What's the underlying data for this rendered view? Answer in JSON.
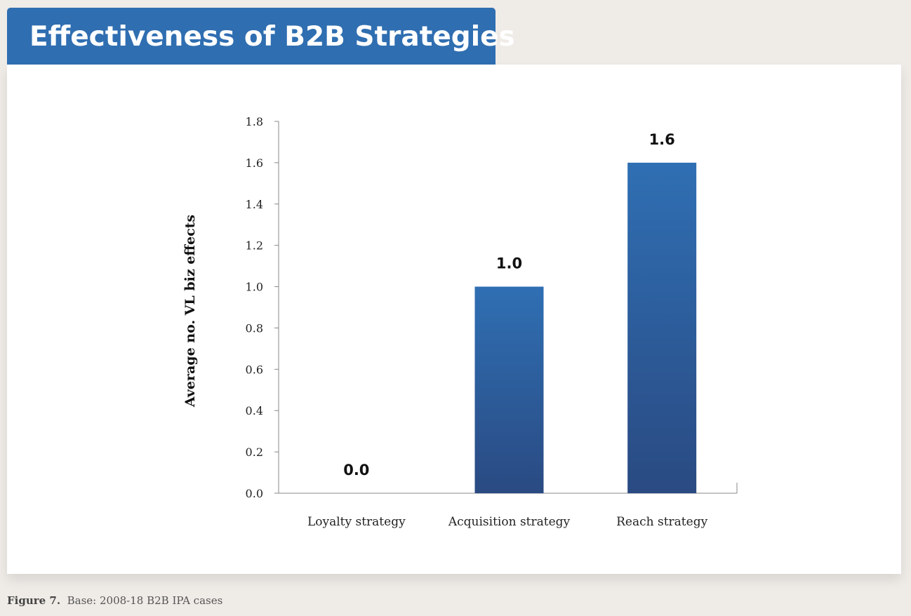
{
  "header": {
    "title": "Effectiveness of B2B Strategies"
  },
  "caption": {
    "figure_label": "Figure 7.",
    "base_text": "Base: 2008-18 B2B IPA cases"
  },
  "colors": {
    "title_bg": "#2f6eb1",
    "bar_top": "#2f6fb3",
    "bar_bottom": "#2a4a82"
  },
  "chart_data": {
    "type": "bar",
    "title": "Effectiveness of B2B Strategies",
    "xlabel": "",
    "ylabel": "Average no. VL biz effects",
    "categories": [
      "Loyalty strategy",
      "Acquisition strategy",
      "Reach strategy"
    ],
    "values": [
      0.0,
      1.0,
      1.6
    ],
    "data_labels": [
      "0.0",
      "1.0",
      "1.6"
    ],
    "ylim": [
      0,
      1.8
    ],
    "yticks": [
      0.0,
      0.2,
      0.4,
      0.6,
      0.8,
      1.0,
      1.2,
      1.4,
      1.6,
      1.8
    ],
    "ytick_labels": [
      "0.0",
      "0.2",
      "0.4",
      "0.6",
      "0.8",
      "1.0",
      "1.2",
      "1.4",
      "1.6",
      "1.8"
    ],
    "grid": false,
    "legend": "none"
  }
}
